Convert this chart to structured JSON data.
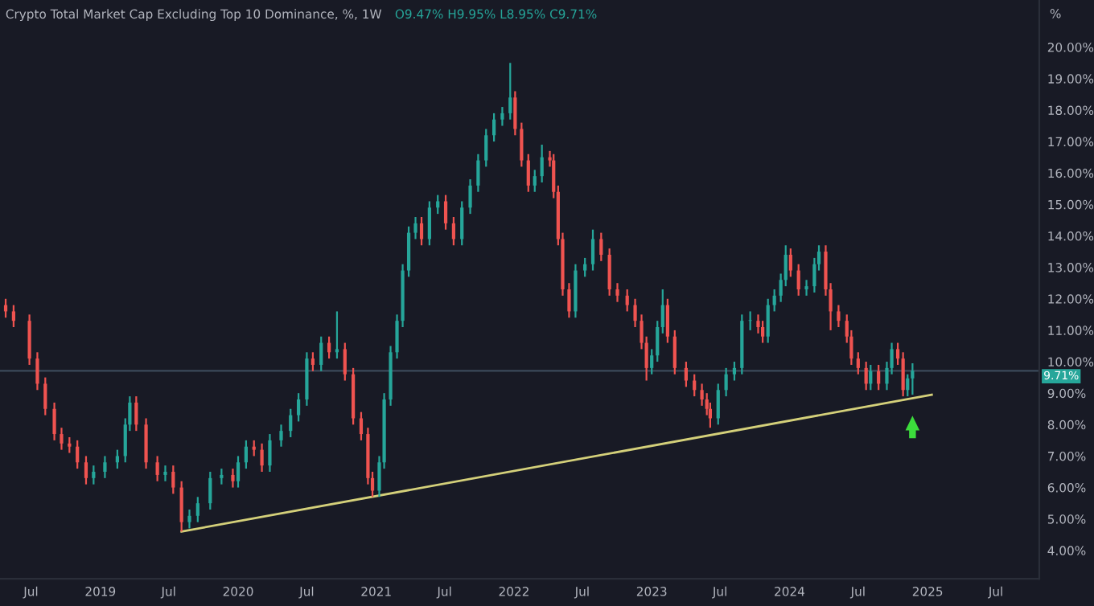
{
  "chart_data": {
    "type": "candlestick",
    "title": "Crypto Total Market Cap Excluding Top 10 Dominance, %, 1W",
    "annotations": [
      "O9.47% H9.95% L8.95% C9.71%"
    ],
    "ylabel": "%",
    "colors": [
      "#ef5350",
      "#ef5350",
      "#ef5350",
      "#ef5350",
      "#ef5350",
      "#ef5350",
      "#ef5350",
      "#ef5350",
      "#ef5350",
      "#ef5350",
      "#26a69a",
      "#26a69a",
      "#26a69a",
      "#26a69a",
      "#26a69a",
      "#ef5350",
      "#ef5350",
      "#ef5350",
      "#26a69a",
      "#ef5350",
      "#ef5350",
      "#26a69a",
      "#26a69a",
      "#26a69a",
      "#26a69a",
      "#ef5350",
      "#26a69a",
      "#26a69a",
      "#ef5350",
      "#ef5350",
      "#26a69a",
      "#26a69a",
      "#26a69a",
      "#26a69a",
      "#26a69a",
      "#ef5350",
      "#26a69a",
      "#ef5350",
      "#26a69a",
      "#ef5350",
      "#ef5350",
      "#ef5350",
      "#ef5350",
      "#ef5350",
      "#26a69a",
      "#26a69a",
      "#26a69a",
      "#26a69a",
      "#26a69a",
      "#26a69a",
      "#26a69a",
      "#ef5350",
      "#26a69a",
      "#26a69a",
      "#ef5350",
      "#ef5350",
      "#26a69a",
      "#26a69a",
      "#26a69a",
      "#26a69a",
      "#26a69a",
      "#26a69a",
      "#26a69a",
      "#ef5350",
      "#ef5350",
      "#ef5350",
      "#26a69a",
      "#26a69a",
      "#ef5350",
      "#ef5350",
      "#ef5350",
      "#ef5350",
      "#ef5350",
      "#26a69a",
      "#26a69a",
      "#26a69a",
      "#ef5350",
      "#ef5350",
      "#ef5350",
      "#ef5350",
      "#ef5350",
      "#ef5350",
      "#ef5350",
      "#26a69a",
      "#26a69a",
      "#26a69a",
      "#ef5350",
      "#ef5350",
      "#ef5350",
      "#ef5350",
      "#ef5350",
      "#ef5350",
      "#ef5350",
      "#26a69a",
      "#26a69a",
      "#26a69a",
      "#26a69a",
      "#26a69a",
      "#ef5350",
      "#ef5350",
      "#26a69a",
      "#26a69a",
      "#26a69a",
      "#26a69a",
      "#ef5350",
      "#ef5350",
      "#26a69a",
      "#26a69a",
      "#26a69a",
      "#ef5350",
      "#ef5350",
      "#ef5350",
      "#ef5350",
      "#ef5350",
      "#ef5350",
      "#ef5350",
      "#26a69a",
      "#ef5350",
      "#26a69a",
      "#26a69a",
      "#ef5350",
      "#ef5350",
      "#26a69a",
      "#26a69a"
    ],
    "x": [
      "2018-04-25",
      "2018-05-16",
      "2018-06-27",
      "2018-07-18",
      "2018-08-08",
      "2018-09-01",
      "2018-09-20",
      "2018-10-11",
      "2018-11-01",
      "2018-11-24",
      "2018-12-14",
      "2019-01-13",
      "2019-02-15",
      "2019-03-08",
      "2019-03-20",
      "2019-04-06",
      "2019-05-02",
      "2019-06-01",
      "2019-06-22",
      "2019-07-13",
      "2019-08-04",
      "2019-08-25",
      "2019-09-16",
      "2019-10-19",
      "2019-11-18",
      "2019-12-18",
      "2020-01-01",
      "2020-01-22",
      "2020-02-12",
      "2020-03-04",
      "2020-03-25",
      "2020-04-24",
      "2020-05-19",
      "2020-06-09",
      "2020-07-01",
      "2020-07-17",
      "2020-08-08",
      "2020-08-29",
      "2020-09-19",
      "2020-10-10",
      "2020-11-01",
      "2020-11-22",
      "2020-12-10",
      "2020-12-22",
      "2021-01-09",
      "2021-01-22",
      "2021-02-08",
      "2021-02-25",
      "2021-03-12",
      "2021-03-28",
      "2021-04-15",
      "2021-05-01",
      "2021-05-22",
      "2021-06-13",
      "2021-07-04",
      "2021-07-25",
      "2021-08-16",
      "2021-09-07",
      "2021-09-28",
      "2021-10-19",
      "2021-11-09",
      "2021-12-01",
      "2021-12-22",
      "2022-01-04",
      "2022-01-21",
      "2022-02-08",
      "2022-02-25",
      "2022-03-16",
      "2022-04-06",
      "2022-04-16",
      "2022-04-28",
      "2022-05-10",
      "2022-05-27",
      "2022-06-13",
      "2022-07-08",
      "2022-07-29",
      "2022-08-20",
      "2022-09-11",
      "2022-10-02",
      "2022-10-28",
      "2022-11-18",
      "2022-12-05",
      "2022-12-18",
      "2023-01-01",
      "2023-01-16",
      "2023-01-30",
      "2023-02-12",
      "2023-03-03",
      "2023-04-02",
      "2023-04-24",
      "2023-05-14",
      "2023-05-27",
      "2023-06-05",
      "2023-06-26",
      "2023-07-17",
      "2023-08-08",
      "2023-08-28",
      "2023-09-19",
      "2023-10-10",
      "2023-10-22",
      "2023-11-05",
      "2023-11-22",
      "2023-12-09",
      "2023-12-22",
      "2024-01-04",
      "2024-01-25",
      "2024-02-15",
      "2024-03-07",
      "2024-03-19",
      "2024-04-06",
      "2024-04-19",
      "2024-05-10",
      "2024-06-01",
      "2024-06-13",
      "2024-07-01",
      "2024-07-22",
      "2024-08-03",
      "2024-08-24",
      "2024-09-15",
      "2024-09-28",
      "2024-10-14",
      "2024-10-28",
      "2024-11-09",
      "2024-11-22"
    ],
    "ohlc": [
      [
        11.8,
        12.0,
        11.4,
        11.6
      ],
      [
        11.6,
        11.8,
        11.1,
        11.3
      ],
      [
        11.3,
        11.5,
        9.9,
        10.1
      ],
      [
        10.1,
        10.3,
        9.1,
        9.3
      ],
      [
        9.3,
        9.5,
        8.3,
        8.5
      ],
      [
        8.5,
        8.7,
        7.5,
        7.7
      ],
      [
        7.7,
        7.9,
        7.2,
        7.4
      ],
      [
        7.4,
        7.6,
        7.1,
        7.3
      ],
      [
        7.3,
        7.5,
        6.6,
        6.8
      ],
      [
        6.8,
        7.0,
        6.1,
        6.3
      ],
      [
        6.3,
        6.7,
        6.1,
        6.5
      ],
      [
        6.5,
        7.0,
        6.3,
        6.8
      ],
      [
        6.8,
        7.2,
        6.6,
        7.0
      ],
      [
        7.0,
        8.2,
        6.8,
        8.0
      ],
      [
        8.0,
        8.9,
        7.8,
        8.7
      ],
      [
        8.7,
        8.9,
        7.8,
        8.0
      ],
      [
        8.0,
        8.2,
        6.6,
        6.8
      ],
      [
        6.8,
        7.0,
        6.2,
        6.4
      ],
      [
        6.4,
        6.7,
        6.2,
        6.5
      ],
      [
        6.5,
        6.7,
        5.8,
        6.0
      ],
      [
        6.0,
        6.2,
        4.6,
        4.9
      ],
      [
        4.9,
        5.3,
        4.7,
        5.1
      ],
      [
        5.1,
        5.7,
        4.9,
        5.5
      ],
      [
        5.5,
        6.5,
        5.3,
        6.3
      ],
      [
        6.3,
        6.6,
        6.1,
        6.4
      ],
      [
        6.4,
        6.6,
        6.0,
        6.2
      ],
      [
        6.2,
        7.0,
        6.0,
        6.8
      ],
      [
        6.8,
        7.5,
        6.6,
        7.3
      ],
      [
        7.3,
        7.5,
        7.0,
        7.2
      ],
      [
        7.2,
        7.4,
        6.5,
        6.7
      ],
      [
        6.7,
        7.7,
        6.5,
        7.5
      ],
      [
        7.5,
        8.0,
        7.3,
        7.8
      ],
      [
        7.8,
        8.5,
        7.6,
        8.3
      ],
      [
        8.3,
        9.0,
        8.1,
        8.8
      ],
      [
        8.8,
        10.3,
        8.6,
        10.1
      ],
      [
        10.1,
        10.3,
        9.7,
        9.9
      ],
      [
        9.9,
        10.8,
        9.7,
        10.6
      ],
      [
        10.6,
        10.8,
        10.1,
        10.3
      ],
      [
        10.3,
        11.6,
        10.1,
        10.4
      ],
      [
        10.4,
        10.6,
        9.4,
        9.6
      ],
      [
        9.6,
        9.8,
        8.0,
        8.2
      ],
      [
        8.2,
        8.4,
        7.5,
        7.7
      ],
      [
        7.7,
        7.9,
        6.1,
        6.3
      ],
      [
        6.3,
        6.5,
        5.7,
        5.9
      ],
      [
        5.9,
        7.0,
        5.7,
        6.8
      ],
      [
        6.8,
        9.0,
        6.6,
        8.8
      ],
      [
        8.8,
        10.5,
        8.6,
        10.3
      ],
      [
        10.3,
        11.5,
        10.1,
        11.3
      ],
      [
        11.3,
        13.1,
        11.1,
        12.9
      ],
      [
        12.9,
        14.3,
        12.7,
        14.1
      ],
      [
        14.1,
        14.6,
        13.9,
        14.4
      ],
      [
        14.4,
        14.6,
        13.7,
        13.9
      ],
      [
        13.9,
        15.1,
        13.7,
        14.9
      ],
      [
        14.9,
        15.3,
        14.7,
        15.1
      ],
      [
        15.1,
        15.3,
        14.2,
        14.4
      ],
      [
        14.4,
        14.6,
        13.7,
        13.9
      ],
      [
        13.9,
        15.1,
        13.7,
        14.9
      ],
      [
        14.9,
        15.8,
        14.7,
        15.6
      ],
      [
        15.6,
        16.6,
        15.4,
        16.4
      ],
      [
        16.4,
        17.4,
        16.2,
        17.2
      ],
      [
        17.2,
        17.9,
        17.0,
        17.7
      ],
      [
        17.7,
        18.1,
        17.5,
        17.9
      ],
      [
        17.9,
        19.5,
        17.7,
        18.4
      ],
      [
        18.4,
        18.6,
        17.2,
        17.4
      ],
      [
        17.4,
        17.6,
        16.2,
        16.4
      ],
      [
        16.4,
        16.6,
        15.4,
        15.6
      ],
      [
        15.6,
        16.1,
        15.4,
        15.9
      ],
      [
        15.9,
        16.9,
        15.7,
        16.5
      ],
      [
        16.5,
        16.7,
        16.2,
        16.4
      ],
      [
        16.4,
        16.6,
        15.2,
        15.4
      ],
      [
        15.4,
        15.6,
        13.7,
        13.9
      ],
      [
        13.9,
        14.1,
        12.1,
        12.3
      ],
      [
        12.3,
        12.5,
        11.4,
        11.6
      ],
      [
        11.6,
        13.1,
        11.4,
        12.9
      ],
      [
        12.9,
        13.3,
        12.7,
        13.1
      ],
      [
        13.1,
        14.2,
        12.9,
        13.9
      ],
      [
        13.9,
        14.1,
        13.2,
        13.4
      ],
      [
        13.4,
        13.6,
        12.1,
        12.3
      ],
      [
        12.3,
        12.5,
        11.9,
        12.1
      ],
      [
        12.1,
        12.3,
        11.6,
        11.8
      ],
      [
        11.8,
        12.0,
        11.1,
        11.3
      ],
      [
        11.3,
        11.5,
        10.4,
        10.6
      ],
      [
        10.6,
        10.8,
        9.4,
        9.8
      ],
      [
        9.8,
        10.4,
        9.6,
        10.2
      ],
      [
        10.2,
        11.3,
        10.0,
        11.1
      ],
      [
        11.1,
        12.3,
        10.9,
        11.8
      ],
      [
        11.8,
        12.0,
        10.6,
        10.8
      ],
      [
        10.8,
        11.0,
        9.6,
        9.8
      ],
      [
        9.8,
        10.0,
        9.2,
        9.4
      ],
      [
        9.4,
        9.6,
        8.9,
        9.1
      ],
      [
        9.1,
        9.3,
        8.6,
        8.8
      ],
      [
        8.8,
        9.0,
        8.3,
        8.5
      ],
      [
        8.5,
        8.7,
        7.9,
        8.2
      ],
      [
        8.2,
        9.3,
        8.0,
        9.1
      ],
      [
        9.1,
        9.8,
        8.9,
        9.6
      ],
      [
        9.6,
        10.0,
        9.4,
        9.8
      ],
      [
        9.8,
        11.5,
        9.6,
        11.3
      ],
      [
        11.3,
        11.6,
        11.0,
        11.3
      ],
      [
        11.3,
        11.5,
        10.9,
        11.1
      ],
      [
        11.1,
        11.3,
        10.6,
        10.8
      ],
      [
        10.8,
        12.0,
        10.6,
        11.8
      ],
      [
        11.8,
        12.3,
        11.6,
        12.1
      ],
      [
        12.1,
        12.8,
        11.9,
        12.6
      ],
      [
        12.6,
        13.7,
        12.4,
        13.4
      ],
      [
        13.4,
        13.6,
        12.7,
        12.9
      ],
      [
        12.9,
        13.1,
        12.1,
        12.3
      ],
      [
        12.3,
        12.6,
        12.1,
        12.4
      ],
      [
        12.4,
        13.3,
        12.2,
        13.1
      ],
      [
        13.1,
        13.7,
        12.9,
        13.5
      ],
      [
        13.5,
        13.7,
        12.1,
        12.3
      ],
      [
        12.3,
        12.5,
        11.0,
        11.6
      ],
      [
        11.6,
        11.8,
        11.1,
        11.3
      ],
      [
        11.3,
        11.5,
        10.6,
        10.8
      ],
      [
        10.8,
        11.0,
        9.9,
        10.1
      ],
      [
        10.1,
        10.3,
        9.6,
        9.8
      ],
      [
        9.8,
        10.0,
        9.1,
        9.3
      ],
      [
        9.3,
        9.9,
        9.1,
        9.7
      ],
      [
        9.7,
        9.9,
        9.1,
        9.3
      ],
      [
        9.3,
        10.0,
        9.1,
        9.8
      ],
      [
        9.8,
        10.6,
        9.6,
        10.4
      ],
      [
        10.4,
        10.6,
        9.9,
        10.1
      ],
      [
        10.1,
        10.3,
        8.9,
        9.1
      ],
      [
        9.1,
        9.6,
        8.9,
        9.47
      ],
      [
        9.47,
        9.95,
        8.95,
        9.71
      ]
    ],
    "series": [
      {
        "type": "line",
        "color": "#d4d07a",
        "x": [
          "2019-08-04",
          "2025-01-12"
        ],
        "values": [
          4.6,
          8.95
        ]
      }
    ],
    "ref_lines": [
      {
        "axis": "y",
        "value": 9.71,
        "label": "9.71%",
        "color": "#3b4a5a"
      }
    ],
    "xlim": [
      "2018-04-10",
      "2025-10-24"
    ],
    "xticks": [
      {
        "value": "2018-07-01",
        "label": "Jul"
      },
      {
        "value": "2019-01-01",
        "label": "2019"
      },
      {
        "value": "2019-07-01",
        "label": "Jul"
      },
      {
        "value": "2020-01-01",
        "label": "2020"
      },
      {
        "value": "2020-07-01",
        "label": "Jul"
      },
      {
        "value": "2021-01-01",
        "label": "2021"
      },
      {
        "value": "2021-07-01",
        "label": "Jul"
      },
      {
        "value": "2022-01-01",
        "label": "2022"
      },
      {
        "value": "2022-07-01",
        "label": "Jul"
      },
      {
        "value": "2023-01-01",
        "label": "2023"
      },
      {
        "value": "2023-07-01",
        "label": "Jul"
      },
      {
        "value": "2024-01-01",
        "label": "2024"
      },
      {
        "value": "2024-07-01",
        "label": "Jul"
      },
      {
        "value": "2025-01-01",
        "label": "2025"
      },
      {
        "value": "2025-07-01",
        "label": "Jul"
      }
    ],
    "ylim": [
      3.1,
      21.5
    ],
    "yticks": [
      {
        "value": 4,
        "label": "4.00%"
      },
      {
        "value": 5,
        "label": "5.00%"
      },
      {
        "value": 6,
        "label": "6.00%"
      },
      {
        "value": 7,
        "label": "7.00%"
      },
      {
        "value": 8,
        "label": "8.00%"
      },
      {
        "value": 9,
        "label": "9.00%"
      },
      {
        "value": 10,
        "label": "10.00%"
      },
      {
        "value": 11,
        "label": "11.00%"
      },
      {
        "value": 12,
        "label": "12.00%"
      },
      {
        "value": 13,
        "label": "13.00%"
      },
      {
        "value": 14,
        "label": "14.00%"
      },
      {
        "value": 15,
        "label": "15.00%"
      },
      {
        "value": 16,
        "label": "16.00%"
      },
      {
        "value": 17,
        "label": "17.00%"
      },
      {
        "value": 18,
        "label": "18.00%"
      },
      {
        "value": 19,
        "label": "19.00%"
      },
      {
        "value": 20,
        "label": "20.00%"
      }
    ],
    "grid": false
  }
}
